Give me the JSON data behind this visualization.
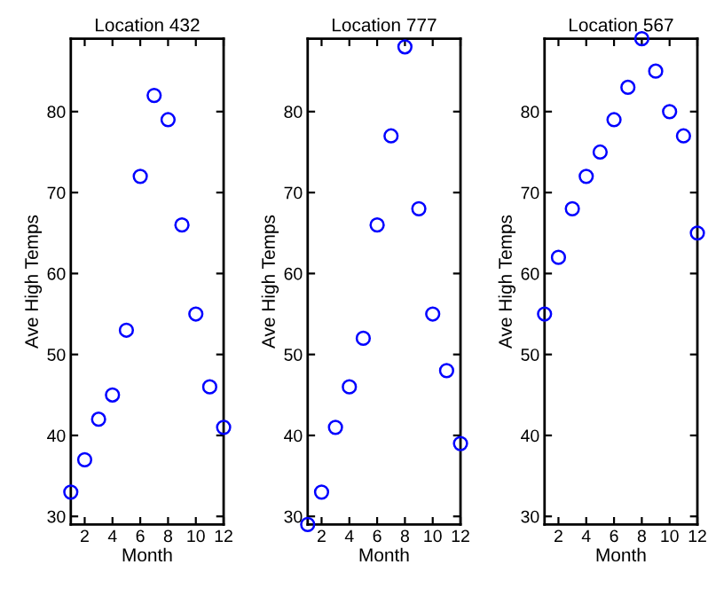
{
  "chart_data": [
    {
      "type": "scatter",
      "title": "Location 432",
      "xlabel": "Month",
      "ylabel": "Ave High Temps",
      "x": [
        1,
        2,
        3,
        4,
        5,
        6,
        7,
        8,
        9,
        10,
        11,
        12
      ],
      "series": [
        {
          "color": "#0000ff",
          "values": [
            33,
            37,
            42,
            45,
            53,
            72,
            82,
            79,
            66,
            55,
            46,
            41
          ]
        }
      ],
      "xlim": [
        1,
        12
      ],
      "ylim": [
        29,
        89
      ],
      "xticks": [
        2,
        4,
        6,
        8,
        10,
        12
      ],
      "yticks": [
        30,
        40,
        50,
        60,
        70,
        80
      ],
      "marker": "circle",
      "grid": false,
      "legend": false
    },
    {
      "type": "scatter",
      "title": "Location 777",
      "xlabel": "Month",
      "ylabel": "Ave High Temps",
      "x": [
        1,
        2,
        3,
        4,
        5,
        6,
        7,
        8,
        9,
        10,
        11,
        12
      ],
      "series": [
        {
          "color": "#0000ff",
          "values": [
            29,
            33,
            41,
            46,
            52,
            66,
            77,
            88,
            68,
            55,
            48,
            39
          ]
        }
      ],
      "xlim": [
        1,
        12
      ],
      "ylim": [
        29,
        89
      ],
      "xticks": [
        2,
        4,
        6,
        8,
        10,
        12
      ],
      "yticks": [
        30,
        40,
        50,
        60,
        70,
        80
      ],
      "marker": "circle",
      "grid": false,
      "legend": false
    },
    {
      "type": "scatter",
      "title": "Location 567",
      "xlabel": "Month",
      "ylabel": "Ave High Temps",
      "x": [
        1,
        2,
        3,
        4,
        5,
        6,
        7,
        8,
        9,
        10,
        11,
        12
      ],
      "series": [
        {
          "color": "#0000ff",
          "values": [
            55,
            62,
            68,
            72,
            75,
            79,
            83,
            89,
            85,
            80,
            77,
            65
          ]
        }
      ],
      "xlim": [
        1,
        12
      ],
      "ylim": [
        29,
        89
      ],
      "xticks": [
        2,
        4,
        6,
        8,
        10,
        12
      ],
      "yticks": [
        30,
        40,
        50,
        60,
        70,
        80
      ],
      "marker": "circle",
      "grid": false,
      "legend": false
    }
  ]
}
